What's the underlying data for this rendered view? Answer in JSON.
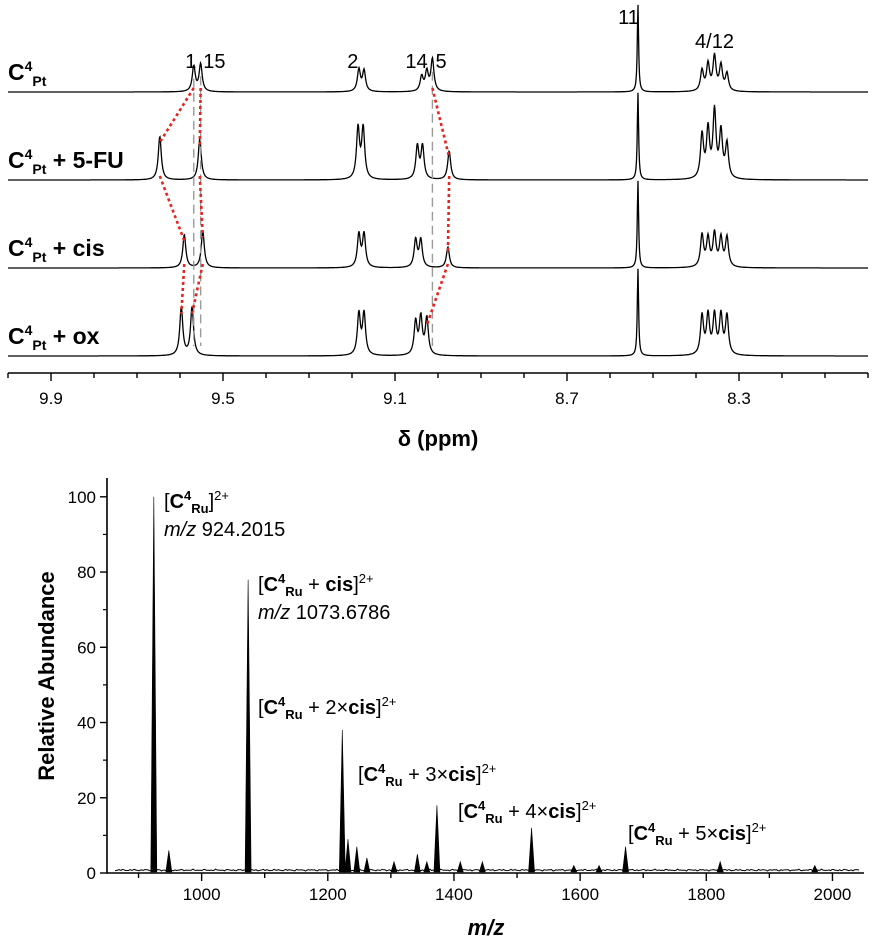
{
  "chart_data": [
    {
      "type": "line",
      "xlabel": "δ (ppm)",
      "xlim": [
        10.0,
        8.0
      ],
      "x_ticks": [
        "9.9",
        "9.5",
        "9.1",
        "8.7",
        "8.3"
      ],
      "x_tick_values": [
        9.9,
        9.5,
        9.1,
        8.7,
        8.3
      ],
      "series": [
        {
          "name_parts": [
            "C",
            "4",
            "Pt",
            ""
          ],
          "peaks": [
            {
              "ppm": 9.568,
              "h": 0.55
            },
            {
              "ppm": 9.552,
              "h": 0.6
            },
            {
              "ppm": 9.184,
              "h": 0.48
            },
            {
              "ppm": 9.172,
              "h": 0.45
            },
            {
              "ppm": 9.038,
              "h": 0.32
            },
            {
              "ppm": 9.026,
              "h": 0.42
            },
            {
              "ppm": 9.013,
              "h": 0.7
            },
            {
              "ppm": 8.535,
              "h": 1.9
            },
            {
              "ppm": 8.386,
              "h": 0.45
            },
            {
              "ppm": 8.372,
              "h": 0.58
            },
            {
              "ppm": 8.357,
              "h": 0.75
            },
            {
              "ppm": 8.342,
              "h": 0.55
            },
            {
              "ppm": 8.328,
              "h": 0.38
            }
          ]
        },
        {
          "name_parts": [
            "C",
            "4",
            "Pt",
            " + 5-FU"
          ],
          "peaks": [
            {
              "ppm": 9.647,
              "h": 0.95
            },
            {
              "ppm": 9.554,
              "h": 0.9
            },
            {
              "ppm": 9.186,
              "h": 1.1
            },
            {
              "ppm": 9.174,
              "h": 1.1
            },
            {
              "ppm": 9.048,
              "h": 0.72
            },
            {
              "ppm": 9.036,
              "h": 0.72
            },
            {
              "ppm": 8.974,
              "h": 0.62
            },
            {
              "ppm": 8.535,
              "h": 1.9
            },
            {
              "ppm": 8.386,
              "h": 0.95
            },
            {
              "ppm": 8.372,
              "h": 1.05
            },
            {
              "ppm": 8.357,
              "h": 1.45
            },
            {
              "ppm": 8.342,
              "h": 1.0
            },
            {
              "ppm": 8.328,
              "h": 0.75
            }
          ]
        },
        {
          "name_parts": [
            "C",
            "4",
            "Pt",
            " + cis"
          ],
          "peaks": [
            {
              "ppm": 9.59,
              "h": 0.72
            },
            {
              "ppm": 9.547,
              "h": 0.8
            },
            {
              "ppm": 9.184,
              "h": 0.72
            },
            {
              "ppm": 9.172,
              "h": 0.72
            },
            {
              "ppm": 9.052,
              "h": 0.6
            },
            {
              "ppm": 9.04,
              "h": 0.6
            },
            {
              "ppm": 8.977,
              "h": 0.45
            },
            {
              "ppm": 8.535,
              "h": 1.9
            },
            {
              "ppm": 8.386,
              "h": 0.7
            },
            {
              "ppm": 8.372,
              "h": 0.62
            },
            {
              "ppm": 8.357,
              "h": 0.72
            },
            {
              "ppm": 8.342,
              "h": 0.62
            },
            {
              "ppm": 8.328,
              "h": 0.65
            }
          ]
        },
        {
          "name_parts": [
            "C",
            "4",
            "Pt",
            " + ox"
          ],
          "peaks": [
            {
              "ppm": 9.597,
              "h": 1.05
            },
            {
              "ppm": 9.572,
              "h": 1.05
            },
            {
              "ppm": 9.184,
              "h": 0.9
            },
            {
              "ppm": 9.172,
              "h": 0.9
            },
            {
              "ppm": 9.052,
              "h": 0.72
            },
            {
              "ppm": 9.04,
              "h": 0.8
            },
            {
              "ppm": 9.026,
              "h": 0.8
            },
            {
              "ppm": 8.535,
              "h": 1.9
            },
            {
              "ppm": 8.386,
              "h": 0.85
            },
            {
              "ppm": 8.372,
              "h": 0.85
            },
            {
              "ppm": 8.357,
              "h": 0.85
            },
            {
              "ppm": 8.342,
              "h": 0.85
            },
            {
              "ppm": 8.328,
              "h": 0.85
            }
          ]
        }
      ],
      "annotations": [
        {
          "text": "1",
          "ppm": 9.575
        },
        {
          "text": "15",
          "ppm": 9.52
        },
        {
          "text": "2",
          "ppm": 9.198
        },
        {
          "text": "14",
          "ppm": 9.05
        },
        {
          "text": "5",
          "ppm": 8.993
        },
        {
          "text": "11",
          "ppm": 8.557
        },
        {
          "text": "4/12",
          "ppm": 8.357
        }
      ]
    },
    {
      "type": "bar",
      "xlabel": "m/z",
      "ylabel": "Relative Abundance",
      "xlim": [
        850,
        2050
      ],
      "ylim": [
        0,
        100
      ],
      "x_ticks": [
        1000,
        1200,
        1400,
        1600,
        1800,
        2000
      ],
      "y_ticks": [
        0,
        20,
        40,
        60,
        80,
        100
      ],
      "peaks": [
        {
          "mz": 924.2,
          "abundance": 100
        },
        {
          "mz": 948,
          "abundance": 6
        },
        {
          "mz": 1073.7,
          "abundance": 78
        },
        {
          "mz": 1223,
          "abundance": 38
        },
        {
          "mz": 1232,
          "abundance": 9
        },
        {
          "mz": 1246,
          "abundance": 7
        },
        {
          "mz": 1262,
          "abundance": 4
        },
        {
          "mz": 1305,
          "abundance": 3
        },
        {
          "mz": 1342,
          "abundance": 5
        },
        {
          "mz": 1357,
          "abundance": 3
        },
        {
          "mz": 1373,
          "abundance": 18
        },
        {
          "mz": 1410,
          "abundance": 3
        },
        {
          "mz": 1445,
          "abundance": 3
        },
        {
          "mz": 1523,
          "abundance": 12
        },
        {
          "mz": 1590,
          "abundance": 2
        },
        {
          "mz": 1630,
          "abundance": 2
        },
        {
          "mz": 1672,
          "abundance": 7
        },
        {
          "mz": 1822,
          "abundance": 3
        },
        {
          "mz": 1972,
          "abundance": 2
        }
      ],
      "annotations": [
        {
          "parts": [
            "[",
            "C",
            "4",
            "Ru",
            "]",
            "2+"
          ],
          "mz_label": "m/z",
          "mz_value": "924.2015"
        },
        {
          "parts": [
            "[",
            "C",
            "4",
            "Ru",
            " + ",
            "cis",
            "]",
            "2+"
          ],
          "mz_label": "m/z",
          "mz_value": "1073.6786"
        },
        {
          "parts": [
            "[",
            "C",
            "4",
            "Ru",
            " + 2×",
            "cis",
            "]",
            "2+"
          ]
        },
        {
          "parts": [
            "[",
            "C",
            "4",
            "Ru",
            " + 3×",
            "cis",
            "]",
            "2+"
          ]
        },
        {
          "parts": [
            "[",
            "C",
            "4",
            "Ru",
            " + 4×",
            "cis",
            "]",
            "2+"
          ]
        },
        {
          "parts": [
            "[",
            "C",
            "4",
            "Ru",
            " + 5×",
            "cis",
            "]",
            "2+"
          ]
        }
      ]
    }
  ]
}
